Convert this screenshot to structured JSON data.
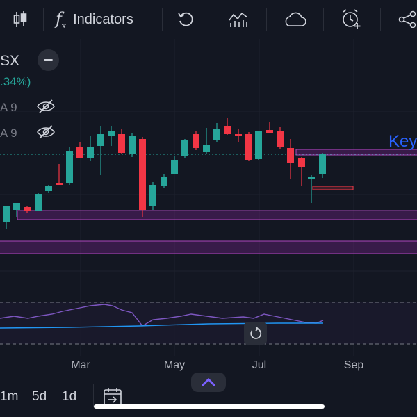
{
  "toolbar": {
    "indicators_label": "Indicators",
    "icons": [
      "candles-icon",
      "function-icon",
      "undo-icon",
      "chart-templates-icon",
      "cloud-icon",
      "add-alert-icon",
      "share-icon"
    ]
  },
  "legend": {
    "symbol": "SX",
    "change": ".34%)",
    "ma1": "A 9",
    "ma2": "A 9",
    "change_color": "#26a69a"
  },
  "annotation": {
    "text": "Key",
    "color": "#2962ff"
  },
  "x_axis": {
    "labels": [
      "Mar",
      "May",
      "Jul",
      "Sep"
    ]
  },
  "timeframes": [
    "1m",
    "5d",
    "1d"
  ],
  "colors": {
    "up": "#26a69a",
    "down": "#f23645",
    "background": "#131722",
    "zone": "#9c27b0"
  }
}
